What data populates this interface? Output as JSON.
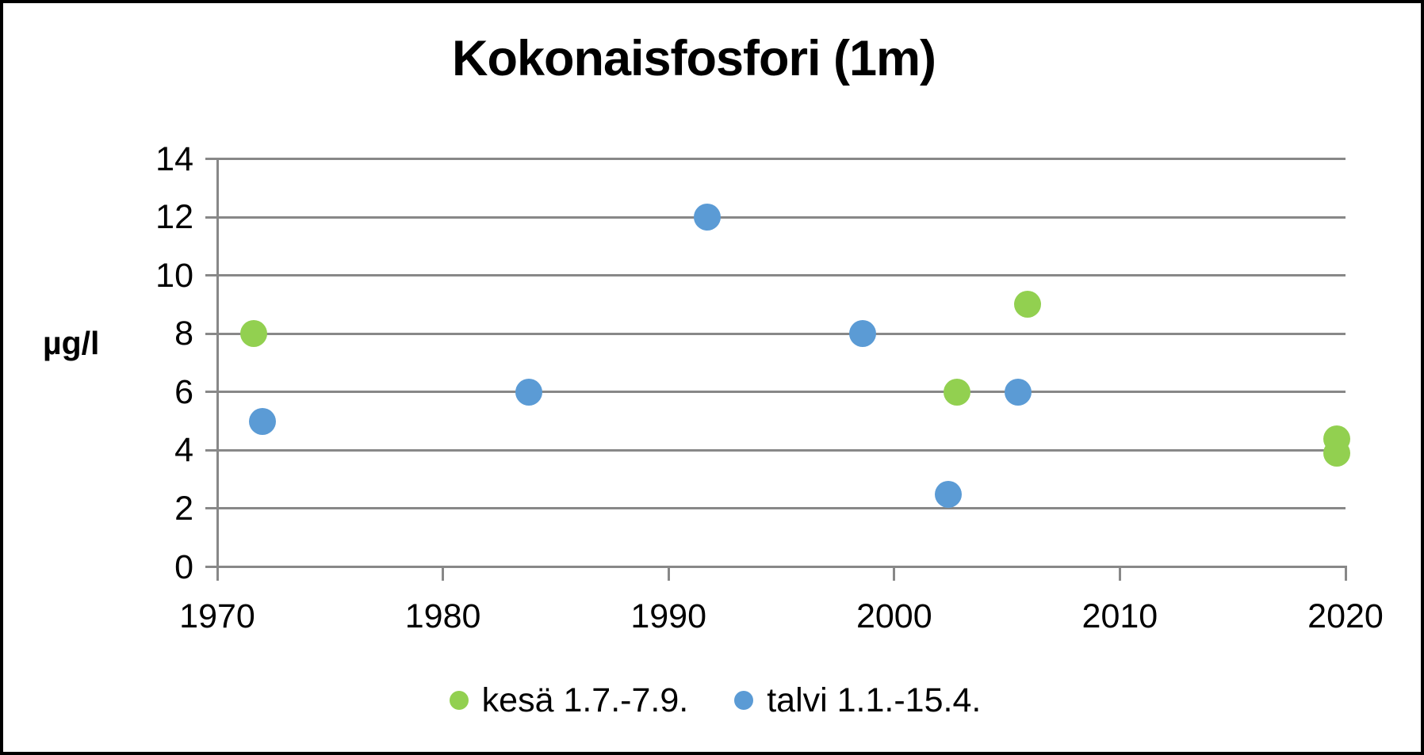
{
  "chart_data": {
    "type": "scatter",
    "title": "Kokonaisfosfori (1m)",
    "xlabel": "",
    "ylabel": "µg/l",
    "xlim": [
      1970,
      2020
    ],
    "ylim": [
      0,
      14
    ],
    "x_ticks": [
      1970,
      1980,
      1990,
      2000,
      2010,
      2020
    ],
    "y_ticks": [
      0,
      2,
      4,
      6,
      8,
      10,
      12,
      14
    ],
    "grid": "horizontal",
    "legend_position": "bottom-center",
    "series": [
      {
        "name": "kesä 1.7.-7.9.",
        "color": "#92D050",
        "points": [
          {
            "x": 1971.6,
            "y": 8
          },
          {
            "x": 2002.8,
            "y": 6
          },
          {
            "x": 2005.9,
            "y": 9
          },
          {
            "x": 2019.6,
            "y": 4.4
          },
          {
            "x": 2019.6,
            "y": 3.9
          }
        ]
      },
      {
        "name": "talvi 1.1.-15.4.",
        "color": "#5B9BD5",
        "points": [
          {
            "x": 1972.0,
            "y": 5
          },
          {
            "x": 1983.8,
            "y": 6
          },
          {
            "x": 1991.7,
            "y": 12
          },
          {
            "x": 1998.6,
            "y": 8
          },
          {
            "x": 2002.4,
            "y": 2.5
          },
          {
            "x": 2005.5,
            "y": 6
          }
        ]
      }
    ],
    "colors": {
      "gridline": "#888888",
      "axis": "#888888",
      "text": "#000000",
      "background": "#FFFFFF",
      "border": "#000000"
    }
  }
}
